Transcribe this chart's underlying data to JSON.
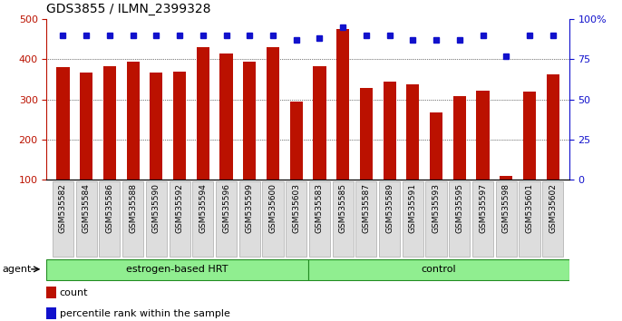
{
  "title": "GDS3855 / ILMN_2399328",
  "samples": [
    "GSM535582",
    "GSM535584",
    "GSM535586",
    "GSM535588",
    "GSM535590",
    "GSM535592",
    "GSM535594",
    "GSM535596",
    "GSM535599",
    "GSM535600",
    "GSM535603",
    "GSM535583",
    "GSM535585",
    "GSM535587",
    "GSM535589",
    "GSM535591",
    "GSM535593",
    "GSM535595",
    "GSM535597",
    "GSM535598",
    "GSM535601",
    "GSM535602"
  ],
  "counts": [
    380,
    368,
    383,
    395,
    368,
    370,
    430,
    415,
    395,
    430,
    295,
    383,
    475,
    328,
    345,
    338,
    268,
    308,
    323,
    110,
    320,
    363
  ],
  "percentiles": [
    90,
    90,
    90,
    90,
    90,
    90,
    90,
    90,
    90,
    90,
    87,
    88,
    95,
    90,
    90,
    87,
    87,
    87,
    90,
    77,
    90,
    90
  ],
  "groups": [
    "estrogen-based HRT",
    "estrogen-based HRT",
    "estrogen-based HRT",
    "estrogen-based HRT",
    "estrogen-based HRT",
    "estrogen-based HRT",
    "estrogen-based HRT",
    "estrogen-based HRT",
    "estrogen-based HRT",
    "estrogen-based HRT",
    "estrogen-based HRT",
    "control",
    "control",
    "control",
    "control",
    "control",
    "control",
    "control",
    "control",
    "control",
    "control",
    "control"
  ],
  "group_labels": [
    "estrogen-based HRT",
    "control"
  ],
  "bar_color": "#BB1100",
  "dot_color": "#1111CC",
  "ylim_left": [
    100,
    500
  ],
  "ylim_right": [
    0,
    100
  ],
  "yticks_left": [
    100,
    200,
    300,
    400,
    500
  ],
  "yticks_right": [
    0,
    25,
    50,
    75,
    100
  ],
  "grid_lines": [
    200,
    300,
    400
  ],
  "agent_label": "agent",
  "legend_bar": "count",
  "legend_dot": "percentile rank within the sample",
  "background_color": "#FFFFFF",
  "tick_label_bg": "#DDDDDD",
  "group_fill": "#90EE90",
  "group_edge": "#228B22",
  "title_fontsize": 10,
  "tick_fontsize": 6.5,
  "n_hrt": 11,
  "n_ctrl": 11
}
